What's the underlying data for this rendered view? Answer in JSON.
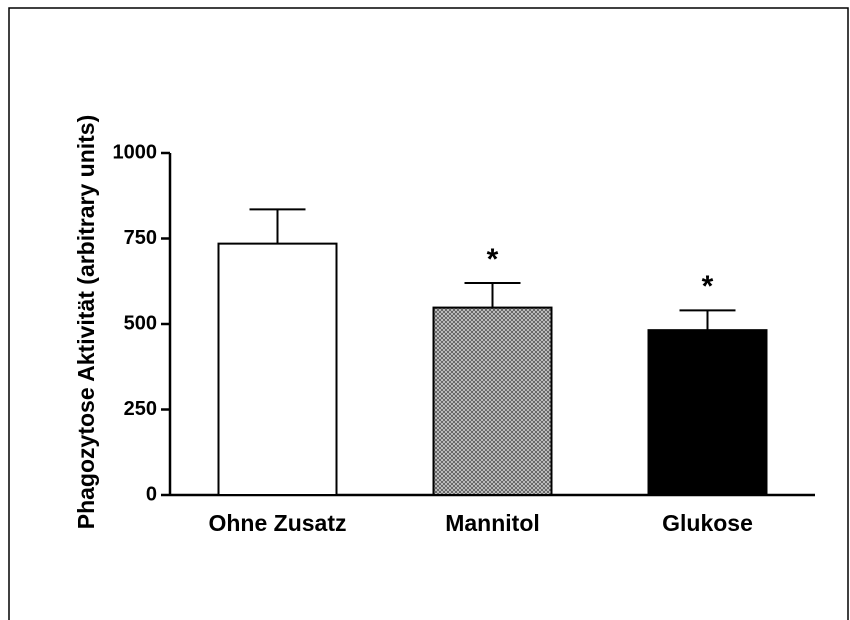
{
  "chart_data": {
    "type": "bar",
    "y_label": "Phagozytose Aktivität (arbitrary units)",
    "categories": [
      "Ohne Zusatz",
      "Mannitol",
      "Glukose"
    ],
    "values": [
      735,
      548,
      482
    ],
    "errors": [
      100,
      72,
      58
    ],
    "colors": [
      "#ffffff",
      "#9a9a9a",
      "#000000"
    ],
    "fills": [
      "solid",
      "crosshatch",
      "solid"
    ],
    "markers": [
      null,
      "*",
      "*"
    ],
    "ylim": [
      0,
      1000
    ],
    "yticks": [
      0,
      250,
      500,
      750,
      1000
    ],
    "grid": false
  }
}
